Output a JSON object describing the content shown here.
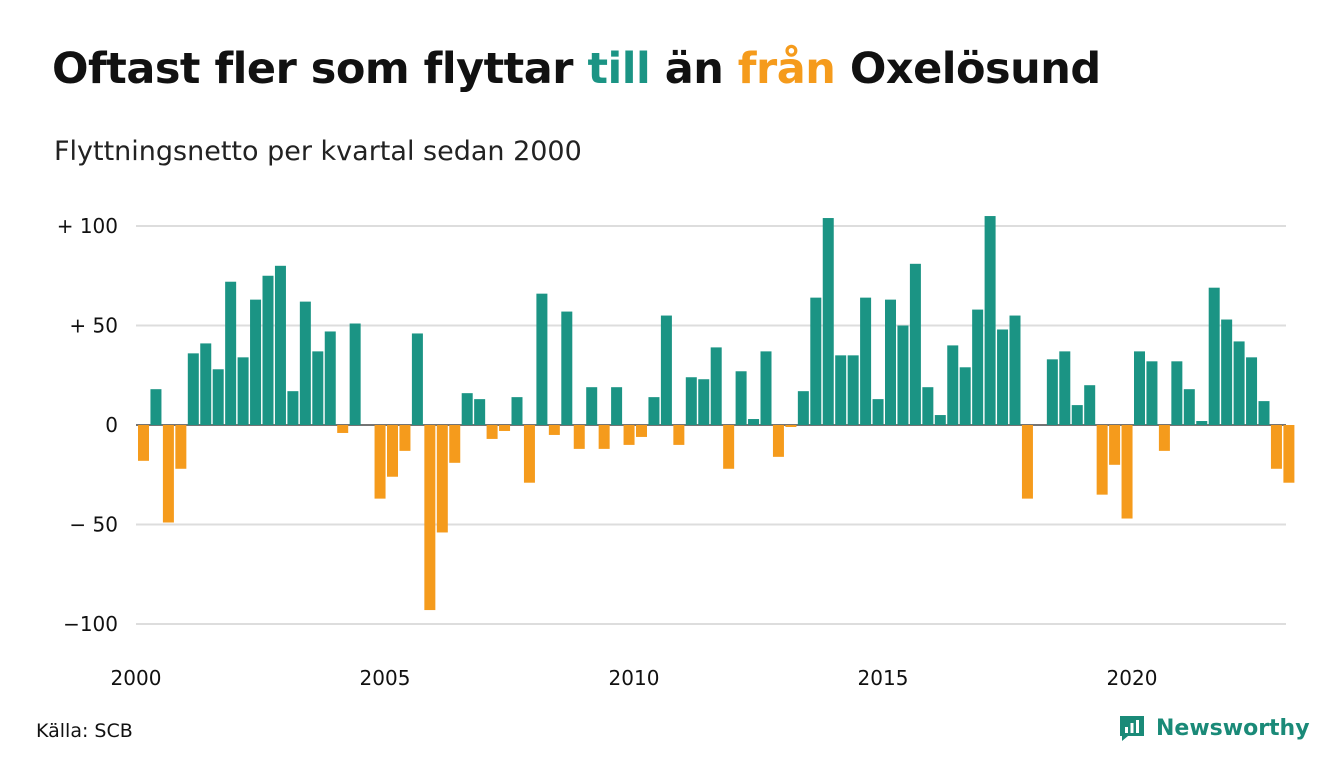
{
  "title": {
    "part1": "Oftast fler som flyttar ",
    "till": "till",
    "part2": " än ",
    "fran": "från",
    "part3": " Oxelösund"
  },
  "subtitle": "Flyttningsnetto per kvartal sedan 2000",
  "source": "Källa: SCB",
  "brand": {
    "name": "Newsworthy",
    "logo_icon": "newsworthy-chat-chart-icon"
  },
  "colors": {
    "positive": "#1b9484",
    "negative": "#f59b1c",
    "title_till": "#1b9484",
    "title_fran": "#f59b1c",
    "brand": "#1a8a78",
    "grid": "#dddddd"
  },
  "chart_data": {
    "type": "bar",
    "x_start": "2000 Q1",
    "periods": "quarterly",
    "ylim": [
      -100,
      105
    ],
    "yticks": [
      {
        "value": 100,
        "label": "+ 100"
      },
      {
        "value": 50,
        "label": "+  50"
      },
      {
        "value": 0,
        "label": "0"
      },
      {
        "value": -50,
        "label": "− 50"
      },
      {
        "value": -100,
        "label": "−100"
      }
    ],
    "xticks": [
      "2000",
      "2005",
      "2010",
      "2015",
      "2020"
    ],
    "grid": true,
    "legend": "none",
    "values": [
      -18,
      18,
      -49,
      -22,
      36,
      41,
      28,
      72,
      34,
      63,
      75,
      80,
      17,
      62,
      37,
      47,
      -4,
      51,
      0,
      -37,
      -26,
      -13,
      46,
      -93,
      -54,
      -19,
      16,
      13,
      -7,
      -3,
      14,
      -29,
      66,
      -5,
      57,
      -12,
      19,
      -12,
      19,
      -10,
      -6,
      14,
      55,
      -10,
      24,
      23,
      39,
      -22,
      27,
      3,
      37,
      -16,
      -1,
      17,
      64,
      104,
      35,
      35,
      64,
      13,
      63,
      50,
      81,
      19,
      5,
      40,
      29,
      58,
      105,
      48,
      55,
      -37,
      0,
      33,
      37,
      10,
      20,
      -35,
      -20,
      -47,
      37,
      32,
      -13,
      32,
      18,
      2,
      69,
      53,
      42,
      34,
      12,
      -22,
      -29
    ]
  }
}
